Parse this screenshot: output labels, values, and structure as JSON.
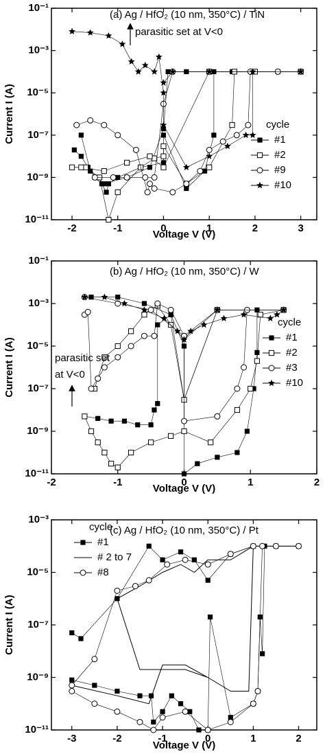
{
  "chart_data": [
    {
      "type": "scatter",
      "title": "(a)  Ag / HfO₂ (10 nm, 350°C) / TiN",
      "xlabel": "Voltage V (V)",
      "ylabel": "Current I (A)",
      "xlim": [
        -2.45,
        3.35
      ],
      "ylim": [
        1e-11,
        0.1
      ],
      "ylog": true,
      "xticks": [
        -2,
        -1,
        0,
        1,
        2,
        3
      ],
      "yticks": [
        {
          "value": 1e-11,
          "label": "10⁻¹¹"
        },
        {
          "value": 1e-09,
          "label": "10⁻⁹"
        },
        {
          "value": 1e-07,
          "label": "10⁻⁷"
        },
        {
          "value": 1e-05,
          "label": "10⁻⁵"
        },
        {
          "value": 0.001,
          "label": "10⁻³"
        },
        {
          "value": 0.1,
          "label": "10⁻¹"
        }
      ],
      "legend_title": "cycle",
      "annotations": [
        "parasitic set at V<0"
      ],
      "series": [
        {
          "name": "#1",
          "marker": "filled-square",
          "color": "#000000",
          "x": [
            -1.95,
            -1.8,
            -1.65,
            -1.5,
            -1.35,
            -1.25,
            -1.2,
            -1.0,
            -0.5,
            0,
            0,
            0.5,
            0.9,
            1.1,
            1.1,
            1.5,
            2,
            2.5,
            3,
            2,
            1,
            0.5,
            0.1,
            0,
            -0.3,
            -0.8,
            -1.3,
            -1.6,
            -1.8
          ],
          "y": [
            2e-08,
            1e-08,
            3e-09,
            1e-09,
            5e-10,
            2e-10,
            5e-10,
            1e-09,
            3e-09,
            5e-09,
            1e-07,
            3e-10,
            2e-09,
            1e-07,
            0.0001,
            0.0001,
            0.0001,
            0.0001,
            0.0001,
            0.0001,
            0.0001,
            0.0001,
            0.0001,
            2e-07,
            3e-09,
            1e-09,
            5e-10,
            2e-09,
            1e-07
          ]
        },
        {
          "name": "#2",
          "marker": "open-square",
          "color": "#000000",
          "x": [
            -2,
            -1.7,
            -1.4,
            -1.2,
            -1.0,
            -0.5,
            -0.2,
            0,
            0,
            0.5,
            1,
            1.5,
            1.55,
            2,
            3,
            1,
            0,
            -0.3,
            -0.8,
            -1.3,
            -1.8
          ],
          "y": [
            3e-09,
            3e-09,
            1e-09,
            1e-11,
            2e-10,
            3e-09,
            8e-09,
            1e-08,
            3e-08,
            5e-10,
            3e-09,
            3e-07,
            0.0001,
            0.0001,
            0.0001,
            0.0001,
            3e-09,
            1e-08,
            5e-09,
            2e-09,
            3e-09
          ]
        },
        {
          "name": "#9",
          "marker": "open-circle",
          "color": "#000000",
          "x": [
            -1.9,
            -1.6,
            -1.3,
            -1.0,
            -0.6,
            -0.35,
            -0.3,
            -0.2,
            0.2,
            0.5,
            0.8,
            1.0,
            1.3,
            1.6,
            1.85,
            1.9,
            2.5,
            3,
            1,
            0.2,
            0,
            -0.2,
            -0.4,
            -0.8,
            -1.1,
            -1.5
          ],
          "y": [
            3e-07,
            5e-07,
            3e-07,
            1e-07,
            2e-08,
            2e-10,
            5e-10,
            3e-10,
            2e-10,
            5e-10,
            2e-09,
            2e-08,
            5e-08,
            1e-07,
            3e-07,
            0.0001,
            0.0001,
            0.0001,
            0.0001,
            0.0001,
            3e-06,
            1e-09,
            1e-09,
            1e-09,
            1e-09,
            1e-09
          ]
        },
        {
          "name": "#10",
          "marker": "star",
          "color": "#000000",
          "x": [
            -2,
            -1.6,
            -1.2,
            -0.9,
            -0.7,
            -0.55,
            -0.4,
            -0.2,
            -0.1,
            0,
            0,
            0.5,
            1,
            1.4,
            1.8,
            1.95,
            1.95,
            3,
            1,
            0.2,
            0
          ],
          "y": [
            0.008,
            0.007,
            0.005,
            0.002,
            0.0003,
            0.0001,
            0.0002,
            0.0001,
            0.0005,
            1e-05,
            3e-07,
            3e-09,
            1e-08,
            3e-08,
            1e-07,
            1e-07,
            0.0001,
            0.0001,
            0.0001,
            0.0001,
            3e-05
          ]
        }
      ]
    },
    {
      "type": "scatter",
      "title": "(b)  Ag / HfO₂ (10 nm, 350°C) / W",
      "xlabel": "Voltage V (V)",
      "ylabel": "Current I (A)",
      "xlim": [
        -2,
        2
      ],
      "ylim": [
        1e-11,
        0.1
      ],
      "ylog": true,
      "xticks": [
        -2,
        -1,
        0,
        1,
        2
      ],
      "yticks": [
        {
          "value": 1e-11,
          "label": "10⁻¹¹"
        },
        {
          "value": 1e-09,
          "label": "10⁻⁹"
        },
        {
          "value": 1e-07,
          "label": "10⁻⁷"
        },
        {
          "value": 1e-05,
          "label": "10⁻⁵"
        },
        {
          "value": 0.001,
          "label": "10⁻³"
        },
        {
          "value": 0.1,
          "label": "10⁻¹"
        }
      ],
      "legend_title": "cycle",
      "annotations": [
        "parasitic set",
        "at V<0"
      ],
      "series": [
        {
          "name": "#1",
          "marker": "filled-square",
          "color": "#000000",
          "x": [
            -1.5,
            -1.3,
            -1.1,
            -0.9,
            -0.7,
            -0.5,
            -0.45,
            -0.4,
            -0.4,
            -0.2,
            0,
            0,
            0.2,
            0.5,
            0.8,
            0.95,
            1.05,
            1.1,
            1.1,
            1.5,
            0.5,
            0,
            -0.2,
            -0.6,
            -1.0,
            -1.4
          ],
          "y": [
            5e-09,
            4e-09,
            3e-09,
            3e-09,
            2e-09,
            2e-09,
            1e-08,
            2e-08,
            0.0001,
            0.0003,
            1e-05,
            1e-11,
            3e-11,
            6e-11,
            1e-10,
            1e-09,
            1e-07,
            5e-06,
            0.0005,
            0.0005,
            0.0005,
            3e-08,
            0.0003,
            0.001,
            0.002,
            0.002
          ]
        },
        {
          "name": "#2",
          "marker": "open-square",
          "color": "#000000",
          "x": [
            -1.5,
            -1.4,
            -1.3,
            -1.2,
            -1.1,
            -1.0,
            -0.8,
            -0.5,
            -0.2,
            0,
            0.4,
            0.8,
            1.0,
            1.1,
            1.15,
            1.5,
            0.5,
            0,
            -0.2,
            -0.4,
            -0.6,
            -0.8,
            -1.0,
            -1.2,
            -1.35
          ],
          "y": [
            5e-09,
            1e-09,
            3e-10,
            1e-10,
            3e-11,
            2e-11,
            1e-10,
            3e-10,
            6e-10,
            1e-09,
            3e-10,
            1e-08,
            1e-07,
            2e-06,
            0.0003,
            0.0005,
            0.0005,
            3e-08,
            0.0001,
            0.0008,
            0.0003,
            5e-05,
            1e-05,
            3e-06,
            1e-07
          ]
        },
        {
          "name": "#3",
          "marker": "open-circle",
          "color": "#000000",
          "x": [
            -1.5,
            -1.45,
            -1.4,
            -1.3,
            -1.2,
            -1.0,
            -0.8,
            -0.6,
            -0.45,
            -0.4,
            -0.2,
            0,
            0,
            0.5,
            0.8,
            0.9,
            0.95,
            1.5,
            0.5,
            0,
            -0.5,
            -1,
            -1.5
          ],
          "y": [
            0.0003,
            0.0004,
            1e-07,
            3e-07,
            1e-06,
            3e-06,
            1e-05,
            3e-05,
            3e-05,
            0.001,
            0.0005,
            3e-05,
            3e-09,
            5e-09,
            1e-07,
            1e-06,
            0.0005,
            0.0005,
            0.0005,
            3e-05,
            0.0005,
            0.001,
            0.002
          ]
        },
        {
          "name": "#10",
          "marker": "star",
          "color": "#000000",
          "x": [
            -1.5,
            -1.2,
            -0.9,
            -0.6,
            -0.3,
            -0.1,
            0,
            0.1,
            0.3,
            0.6,
            0.9,
            1.3,
            1.4,
            1.5,
            0.5,
            0
          ],
          "y": [
            0.002,
            0.002,
            0.001,
            0.0005,
            0.0002,
            5e-05,
            2e-05,
            5e-05,
            0.0001,
            0.0002,
            0.0003,
            0.0002,
            0.0003,
            0.0005,
            0.0005,
            2e-05
          ]
        }
      ]
    },
    {
      "type": "scatter",
      "title": "(c)  Ag / HfO₂ (10 nm, 350°C) / Pt",
      "xlabel": "Voltage V (V)",
      "ylabel": "Current I (A)",
      "xlim": [
        -3.45,
        2.4
      ],
      "ylim": [
        1e-11,
        0.001
      ],
      "ylog": true,
      "xticks": [
        -3,
        -2,
        -1,
        0,
        1,
        2
      ],
      "yticks": [
        {
          "value": 1e-11,
          "label": "10⁻¹¹"
        },
        {
          "value": 1e-09,
          "label": "10⁻⁹"
        },
        {
          "value": 1e-07,
          "label": "10⁻⁷"
        },
        {
          "value": 1e-05,
          "label": "10⁻⁵"
        },
        {
          "value": 0.001,
          "label": "10⁻³"
        }
      ],
      "legend_title": "cycle",
      "annotations": [],
      "series": [
        {
          "name": "#1",
          "marker": "filled-square",
          "color": "#000000",
          "x": [
            -3,
            -2.5,
            -2,
            -1.5,
            -1.25,
            -1.2,
            -1.0,
            -0.8,
            -0.6,
            -0.4,
            -0.2,
            0,
            0.05,
            0.5,
            1,
            1.1,
            1.15,
            1.2,
            1.25,
            1.5,
            2,
            1,
            0.5,
            0,
            -0.3,
            -0.6,
            -1,
            -1.3,
            -2,
            -2.8,
            -3
          ],
          "y": [
            8e-10,
            5e-10,
            3e-10,
            2e-10,
            2e-10,
            2e-11,
            5e-11,
            2e-10,
            1e-10,
            5e-11,
            1e-11,
            1e-11,
            2e-07,
            3e-11,
            1e-10,
            3e-10,
            2e-07,
            8e-09,
            0.0001,
            0.0001,
            0.0001,
            0.0001,
            5e-05,
            5e-06,
            3e-05,
            6e-05,
            3e-05,
            0.0001,
            1e-06,
            3e-08,
            5e-08
          ]
        },
        {
          "name": "# 2 to 7",
          "marker": "line",
          "color": "#000000",
          "x": [
            -3,
            -2,
            -1.3,
            -1,
            -0.5,
            0,
            0.5,
            0.9,
            1,
            1.2,
            2,
            1,
            0.5,
            0,
            -0.3,
            -0.6,
            -1,
            -1.5,
            -2,
            -1.5,
            -0.5,
            0
          ],
          "y": [
            5e-10,
            2e-10,
            1e-10,
            3e-09,
            3e-09,
            1e-09,
            3e-10,
            3e-10,
            0.0001,
            0.0001,
            0.0001,
            0.0001,
            3e-05,
            3e-05,
            1e-05,
            2e-05,
            1e-05,
            3e-06,
            1e-06,
            2e-09,
            2e-09,
            1e-09
          ]
        },
        {
          "name": "#8",
          "marker": "open-circle",
          "color": "#000000",
          "x": [
            -3,
            -2.5,
            -2,
            -1.5,
            -1.2,
            -1.0,
            -0.5,
            0,
            0.5,
            1.0,
            1.1,
            1.2,
            1.5,
            2,
            1,
            0.5,
            0,
            -0.5,
            -0.9,
            -1.3,
            -1.6,
            -2,
            -2.5,
            -3
          ],
          "y": [
            3e-10,
            1e-10,
            5e-11,
            2e-11,
            1e-11,
            3e-11,
            5e-11,
            1e-11,
            2e-11,
            1e-10,
            3e-10,
            0.0001,
            0.0001,
            0.0001,
            0.0001,
            5e-05,
            2e-05,
            3e-05,
            2e-05,
            5e-06,
            3e-06,
            2e-06,
            5e-09,
            5e-10
          ]
        }
      ]
    }
  ]
}
